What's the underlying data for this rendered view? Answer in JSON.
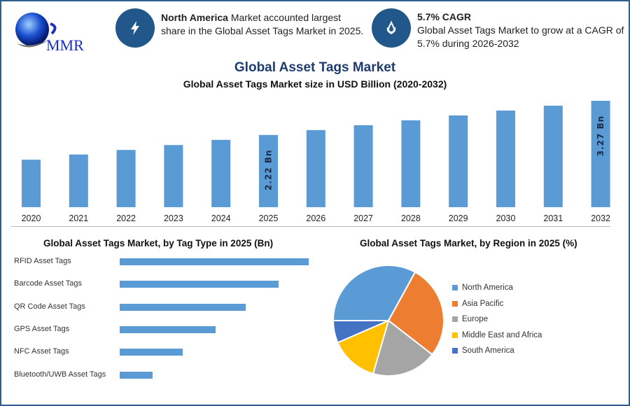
{
  "header": {
    "logo_text": "MMR",
    "info1": {
      "icon": "lightning-icon",
      "bold": "North America",
      "text": " Market accounted largest share in the Global Asset Tags Market in 2025."
    },
    "info2": {
      "icon": "growth-drop-icon",
      "title": "5.7% CAGR",
      "text": "Global Asset Tags Market to grow at a CAGR of 5.7% during 2026-2032"
    }
  },
  "title": "Global Asset Tags Market",
  "colors": {
    "bar": "#5b9bd5",
    "icon_bg": "#22578c",
    "title": "#1f3c6e"
  },
  "chart_data": [
    {
      "type": "bar",
      "title": "Global Asset Tags Market size in USD Billion (2020-2032)",
      "categories": [
        "2020",
        "2021",
        "2022",
        "2023",
        "2024",
        "2025",
        "2026",
        "2027",
        "2028",
        "2029",
        "2030",
        "2031",
        "2032"
      ],
      "values": [
        1.46,
        1.62,
        1.76,
        1.91,
        2.07,
        2.22,
        2.37,
        2.52,
        2.67,
        2.82,
        2.97,
        3.12,
        3.27
      ],
      "data_labels": {
        "2025": "2.22 Bn",
        "2032": "3.27 Bn"
      },
      "xlabel": "",
      "ylabel": "",
      "grid": false
    },
    {
      "type": "bar",
      "orientation": "horizontal",
      "title": "Global Asset Tags Market, by Tag Type in 2025 (Bn)",
      "categories": [
        "RFID Asset Tags",
        "Barcode Asset Tags",
        "QR Code Asset Tags",
        "GPS Asset Tags",
        "NFC Asset Tags",
        "Bluetooth/UWB Asset Tags"
      ],
      "values": [
        0.63,
        0.53,
        0.42,
        0.32,
        0.21,
        0.11
      ],
      "grid": false
    },
    {
      "type": "pie",
      "title": "Global Asset Tags Market, by Region in 2025 (%)",
      "categories": [
        "North America",
        "Asia Pacific",
        "Europe",
        "Middle East and Africa",
        "South America"
      ],
      "values": [
        33,
        27.5,
        19,
        14,
        6.5
      ],
      "colors": [
        "#5b9bd5",
        "#ed7d31",
        "#a5a5a5",
        "#ffc000",
        "#4472c4"
      ],
      "legend": "right"
    }
  ]
}
